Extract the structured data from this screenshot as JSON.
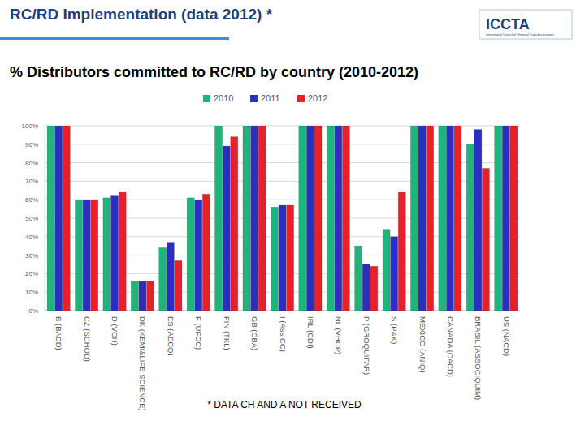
{
  "header": {
    "logo": "ICCTA",
    "logo_subtitle": "International Council of Chemical Trade Associations"
  },
  "chart_data": {
    "type": "bar",
    "title": "RC/RD Implementation (data 2012) *",
    "subtitle": "% Distributors committed to RC/RD by country (2010-2012)",
    "categories": [
      "B (BACD)",
      "CZ (SCHOD)",
      "D (VCH)",
      "DK (KEMI&LIFE SCIENCE)",
      "ES (AECQ)",
      "F (UFCC)",
      "FIN (TKL)",
      "GB (CBA)",
      "I (AssICC)",
      "IRL (CDI)",
      "NL (VHCP)",
      "P (GROQUIFAR)",
      "S (P&K)",
      "MEXICO (ANIQ)",
      "CANADA (CACD)",
      "BRASIL (ASSOCIQUIM)",
      "US (NACD)"
    ],
    "series": [
      {
        "name": "2010",
        "color": "#1fb47c",
        "values": [
          100,
          60,
          61,
          16,
          34,
          61,
          100,
          100,
          56,
          100,
          100,
          35,
          44,
          100,
          100,
          90,
          100
        ]
      },
      {
        "name": "2011",
        "color": "#2b2fbf",
        "values": [
          100,
          60,
          62,
          16,
          37,
          60,
          89,
          100,
          57,
          100,
          100,
          25,
          40,
          100,
          100,
          98,
          100
        ]
      },
      {
        "name": "2012",
        "color": "#e8202a",
        "values": [
          100,
          60,
          64,
          16,
          27,
          63,
          94,
          100,
          57,
          100,
          100,
          24,
          64,
          100,
          100,
          77,
          100
        ]
      }
    ],
    "ylim": [
      0,
      100
    ],
    "yticks": [
      {
        "value": 0,
        "label": "0%"
      },
      {
        "value": 10,
        "label": "10%"
      },
      {
        "value": 20,
        "label": "20%"
      },
      {
        "value": 30,
        "label": "30%"
      },
      {
        "value": 40,
        "label": "40%"
      },
      {
        "value": 50,
        "label": "50%"
      },
      {
        "value": 60,
        "label": "60%"
      },
      {
        "value": 70,
        "label": "70%"
      },
      {
        "value": 80,
        "label": "80%"
      },
      {
        "value": 90,
        "label": "90%"
      },
      {
        "value": 100,
        "label": "100%"
      }
    ],
    "grid": true,
    "legend": "top",
    "annotations": [
      "* DATA CH AND A NOT RECEIVED"
    ]
  }
}
